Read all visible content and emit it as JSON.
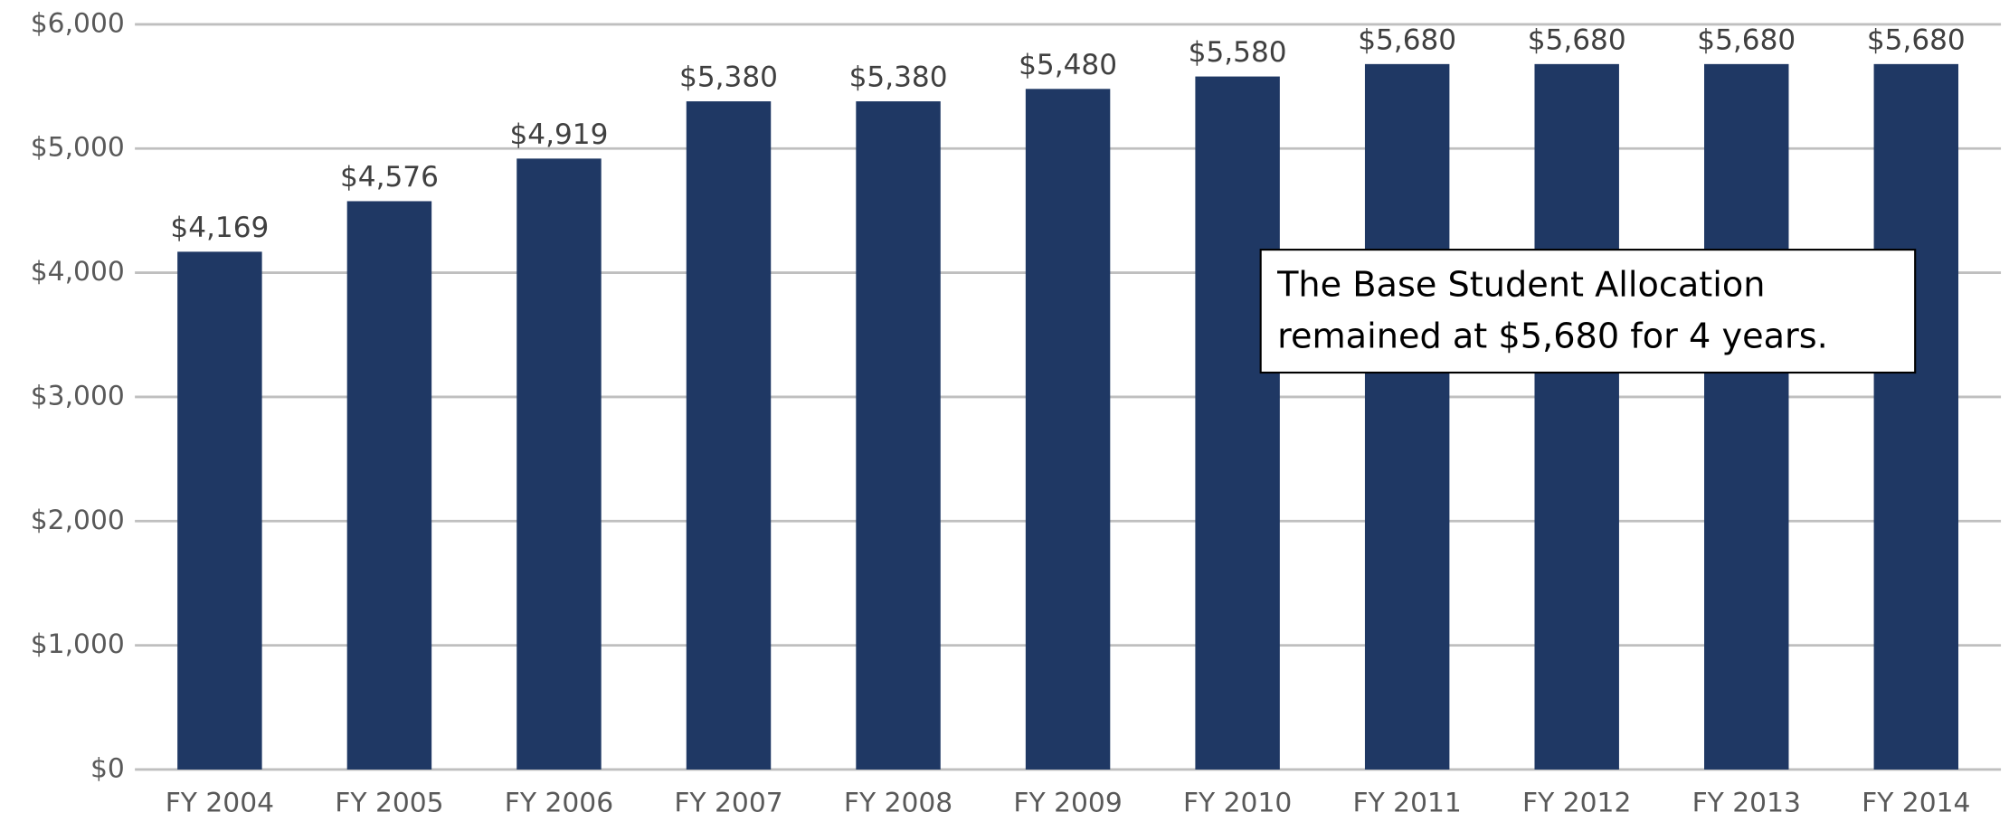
{
  "chart_data": {
    "type": "bar",
    "categories": [
      "FY 2004",
      "FY 2005",
      "FY 2006",
      "FY 2007",
      "FY 2008",
      "FY 2009",
      "FY 2010",
      "FY 2011",
      "FY 2012",
      "FY 2013",
      "FY 2014"
    ],
    "values": [
      4169,
      4576,
      4919,
      5380,
      5380,
      5480,
      5580,
      5680,
      5680,
      5680,
      5680
    ],
    "value_labels": [
      "$4,169",
      "$4,576",
      "$4,919",
      "$5,380",
      "$5,380",
      "$5,480",
      "$5,580",
      "$5,680",
      "$5,680",
      "$5,680",
      "$5,680"
    ],
    "color": "#1f3864",
    "ylim": [
      0,
      6000
    ],
    "yticks": [
      {
        "value": 0,
        "label": "$0"
      },
      {
        "value": 1000,
        "label": "$1,000"
      },
      {
        "value": 2000,
        "label": "$2,000"
      },
      {
        "value": 3000,
        "label": "$3,000"
      },
      {
        "value": 4000,
        "label": "$4,000"
      },
      {
        "value": 5000,
        "label": "$5,000"
      },
      {
        "value": 6000,
        "label": "$6,000"
      }
    ],
    "grid": true,
    "annotation": [
      "The Base Student Allocation",
      "remained at $5,680 for 4 years."
    ]
  }
}
